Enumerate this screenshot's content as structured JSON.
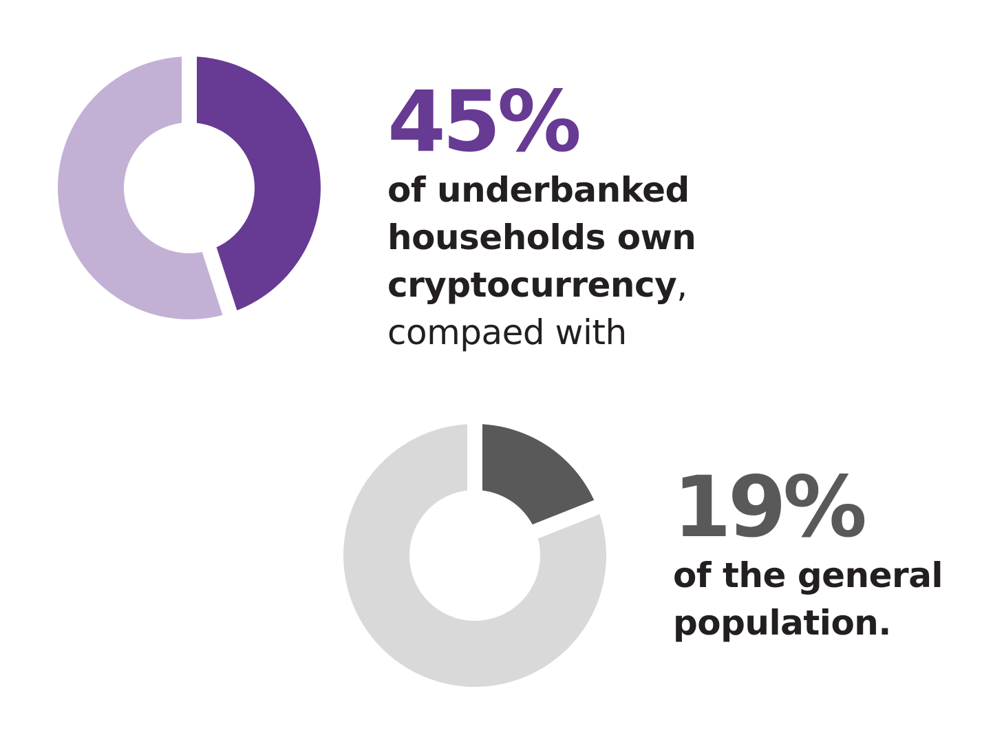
{
  "chart_data": [
    {
      "type": "pie",
      "variant": "donut",
      "values": [
        45,
        55
      ],
      "highlight_value": 45,
      "colors": {
        "highlight": "#673a93",
        "remainder": "#c2b1d5"
      },
      "label": "45%",
      "caption_bold": [
        "of underbanked",
        "households own",
        "cryptocurrency"
      ],
      "caption_comma": ",",
      "caption_light": "compaed with"
    },
    {
      "type": "pie",
      "variant": "donut",
      "values": [
        19,
        81
      ],
      "highlight_value": 19,
      "colors": {
        "highlight": "#595959",
        "remainder": "#d9d9d9"
      },
      "label": "19%",
      "caption_bold": [
        "of the general",
        "population."
      ]
    }
  ],
  "colors": {
    "text": "#231f20",
    "background": "#ffffff"
  }
}
